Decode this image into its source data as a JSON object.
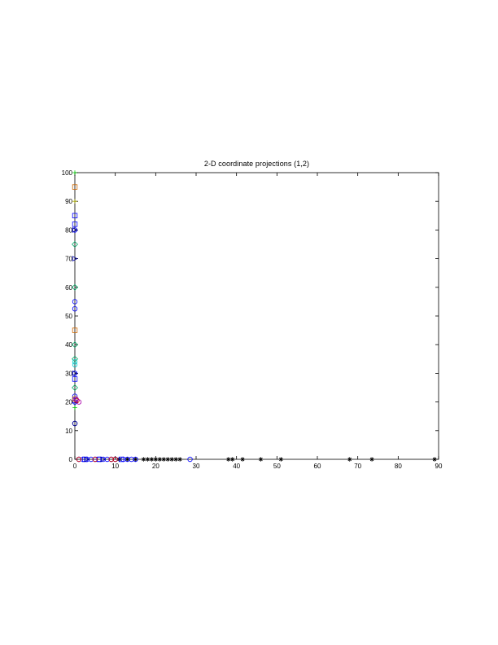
{
  "chart_data": {
    "type": "scatter",
    "title": "2-D coordinate projections (1,2)",
    "xlabel": "",
    "ylabel": "",
    "xlim": [
      0,
      90
    ],
    "ylim": [
      0,
      100
    ],
    "xticks": [
      "0",
      "10",
      "20",
      "30",
      "40",
      "50",
      "60",
      "70",
      "80",
      "90"
    ],
    "yticks": [
      "0",
      "10",
      "20",
      "30",
      "40",
      "50",
      "60",
      "70",
      "80",
      "90",
      "100"
    ],
    "grid": false,
    "legend": "none",
    "series": [
      {
        "marker": "star",
        "color": "#000000",
        "points": [
          [
            11,
            0
          ],
          [
            13,
            0
          ],
          [
            15,
            0
          ],
          [
            17,
            0
          ],
          [
            18,
            0
          ],
          [
            19,
            0
          ],
          [
            20,
            0
          ],
          [
            21,
            0
          ],
          [
            22,
            0
          ],
          [
            23,
            0
          ],
          [
            24,
            0
          ],
          [
            25,
            0
          ],
          [
            26,
            0
          ],
          [
            38,
            0
          ],
          [
            39,
            0
          ],
          [
            41.5,
            0
          ],
          [
            46,
            0
          ],
          [
            51,
            0
          ],
          [
            68,
            0
          ],
          [
            73.5,
            0
          ],
          [
            89,
            0
          ]
        ]
      },
      {
        "marker": "circle",
        "color": "#0000ff",
        "points": [
          [
            1,
            0
          ],
          [
            2,
            0
          ],
          [
            3,
            0
          ],
          [
            4,
            0
          ],
          [
            5,
            0
          ],
          [
            6,
            0
          ],
          [
            7,
            0
          ],
          [
            8,
            0
          ],
          [
            9,
            0
          ],
          [
            10,
            0
          ],
          [
            12,
            0
          ],
          [
            13,
            0
          ],
          [
            14,
            0
          ],
          [
            15,
            0
          ],
          [
            28.5,
            0
          ],
          [
            0,
            12.5
          ],
          [
            0,
            20
          ],
          [
            0,
            22
          ],
          [
            0,
            52.5
          ],
          [
            0,
            55
          ],
          [
            0,
            80
          ],
          [
            0,
            30
          ]
        ]
      },
      {
        "marker": "square",
        "color": "#0000ff",
        "points": [
          [
            2.5,
            0
          ],
          [
            6,
            0
          ],
          [
            11.5,
            0
          ],
          [
            0,
            28
          ],
          [
            0,
            82
          ],
          [
            0,
            85
          ],
          [
            0,
            20.5
          ]
        ]
      },
      {
        "marker": "square",
        "color": "#cc6600",
        "points": [
          [
            0,
            95
          ],
          [
            0,
            45
          ],
          [
            0,
            21
          ]
        ]
      },
      {
        "marker": "diamond",
        "color": "#00aa66",
        "points": [
          [
            0,
            60
          ],
          [
            0,
            35
          ],
          [
            0,
            75
          ],
          [
            0,
            40
          ],
          [
            0,
            25
          ]
        ]
      },
      {
        "marker": "triangle-right",
        "color": "#0000aa",
        "points": [
          [
            0,
            70
          ],
          [
            0,
            30
          ],
          [
            0,
            80
          ],
          [
            3,
            0
          ],
          [
            7,
            0
          ]
        ]
      },
      {
        "marker": "circle",
        "color": "#cc0000",
        "points": [
          [
            0.5,
            20.5
          ],
          [
            1,
            0
          ],
          [
            5,
            0
          ],
          [
            9,
            0
          ],
          [
            10,
            0
          ]
        ]
      },
      {
        "marker": "circle",
        "color": "#aa00aa",
        "points": [
          [
            1,
            20
          ],
          [
            0.3,
            21
          ]
        ]
      },
      {
        "marker": "plus",
        "color": "#00cc00",
        "points": [
          [
            0,
            100
          ],
          [
            0,
            18
          ]
        ]
      },
      {
        "marker": "plus",
        "color": "#aaaa00",
        "points": [
          [
            0,
            90
          ]
        ]
      },
      {
        "marker": "circle",
        "color": "#00cccc",
        "points": [
          [
            0,
            34
          ],
          [
            0,
            33
          ]
        ]
      },
      {
        "marker": "circle",
        "color": "#000080",
        "points": [
          [
            0,
            12.5
          ]
        ]
      }
    ]
  }
}
